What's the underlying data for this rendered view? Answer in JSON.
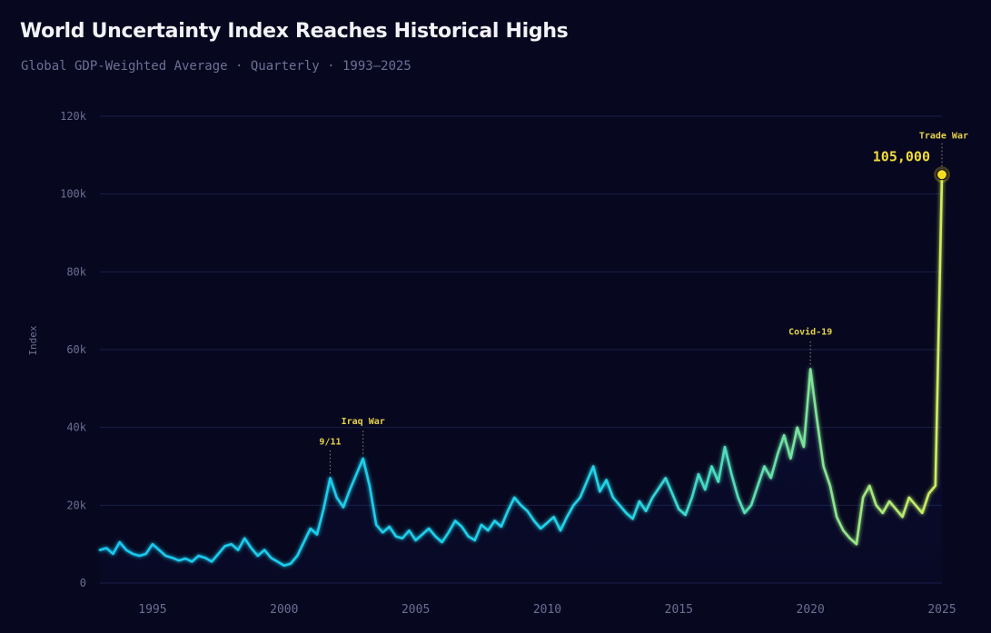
{
  "header": {
    "title": "World Uncertainty Index Reaches Historical Highs",
    "subtitle": "Global GDP-Weighted Average · Quarterly · 1993–2025"
  },
  "colors": {
    "background": "#07071f",
    "line_start": "#19c8f0",
    "line_end": "#d2ee5a",
    "annotation": "#e4d24a",
    "peak_marker": "#f5dc1e"
  },
  "chart_data": {
    "type": "line",
    "title": "World Uncertainty Index Reaches Historical Highs",
    "subtitle": "Global GDP-Weighted Average · Quarterly · 1993–2025",
    "xlabel": "",
    "ylabel": "Index",
    "xlim": [
      1993,
      2025
    ],
    "ylim": [
      0,
      120000
    ],
    "grid": true,
    "y_ticks": [
      0,
      20000,
      40000,
      60000,
      80000,
      100000,
      120000
    ],
    "y_tick_labels": [
      "0",
      "20k",
      "40k",
      "60k",
      "80k",
      "100k",
      "120k"
    ],
    "x_ticks": [
      1995,
      2000,
      2005,
      2010,
      2015,
      2020,
      2025
    ],
    "x_tick_labels": [
      "1995",
      "2000",
      "2005",
      "2010",
      "2015",
      "2020",
      "2025"
    ],
    "series": [
      {
        "name": "World Uncertainty Index",
        "start_year": 1993.0,
        "step": 0.25,
        "values": [
          8500,
          9000,
          7500,
          10500,
          8500,
          7500,
          7000,
          7500,
          10000,
          8500,
          7000,
          6500,
          5800,
          6300,
          5500,
          7000,
          6500,
          5500,
          7500,
          9500,
          10000,
          8500,
          11500,
          9000,
          7000,
          8500,
          6500,
          5500,
          4500,
          5000,
          7000,
          10500,
          14000,
          12500,
          19000,
          27000,
          22000,
          19500,
          24000,
          28000,
          32000,
          25000,
          15000,
          13000,
          14500,
          12000,
          11500,
          13500,
          11000,
          12500,
          14000,
          12000,
          10500,
          13000,
          16000,
          14500,
          12000,
          11000,
          15000,
          13500,
          16000,
          14500,
          18500,
          22000,
          20000,
          18500,
          16000,
          14000,
          15500,
          17000,
          13500,
          17000,
          20000,
          22000,
          26000,
          30000,
          23500,
          26500,
          22000,
          20000,
          18000,
          16500,
          21000,
          18500,
          22000,
          24500,
          27000,
          23000,
          19000,
          17500,
          22000,
          28000,
          24000,
          30000,
          26000,
          35000,
          28000,
          22000,
          18000,
          20000,
          25000,
          30000,
          27000,
          33000,
          38000,
          32000,
          40000,
          35000,
          55000,
          42000,
          30000,
          25000,
          17000,
          13500,
          11500,
          10000,
          22000,
          25000,
          20000,
          18000,
          21000,
          19000,
          17000,
          22000,
          20000,
          18000,
          23000,
          25000,
          105000
        ]
      }
    ],
    "annotations": [
      {
        "label": "9/11",
        "x": 2001.75,
        "y": 27000
      },
      {
        "label": "Iraq War",
        "x": 2003.0,
        "y": 32000
      },
      {
        "label": "Covid-19",
        "x": 2020.0,
        "y": 55000
      },
      {
        "label": "Trade War",
        "x": 2025.0,
        "y": 105000
      }
    ],
    "peak": {
      "label": "105,000",
      "x": 2025.0,
      "y": 105000
    }
  }
}
